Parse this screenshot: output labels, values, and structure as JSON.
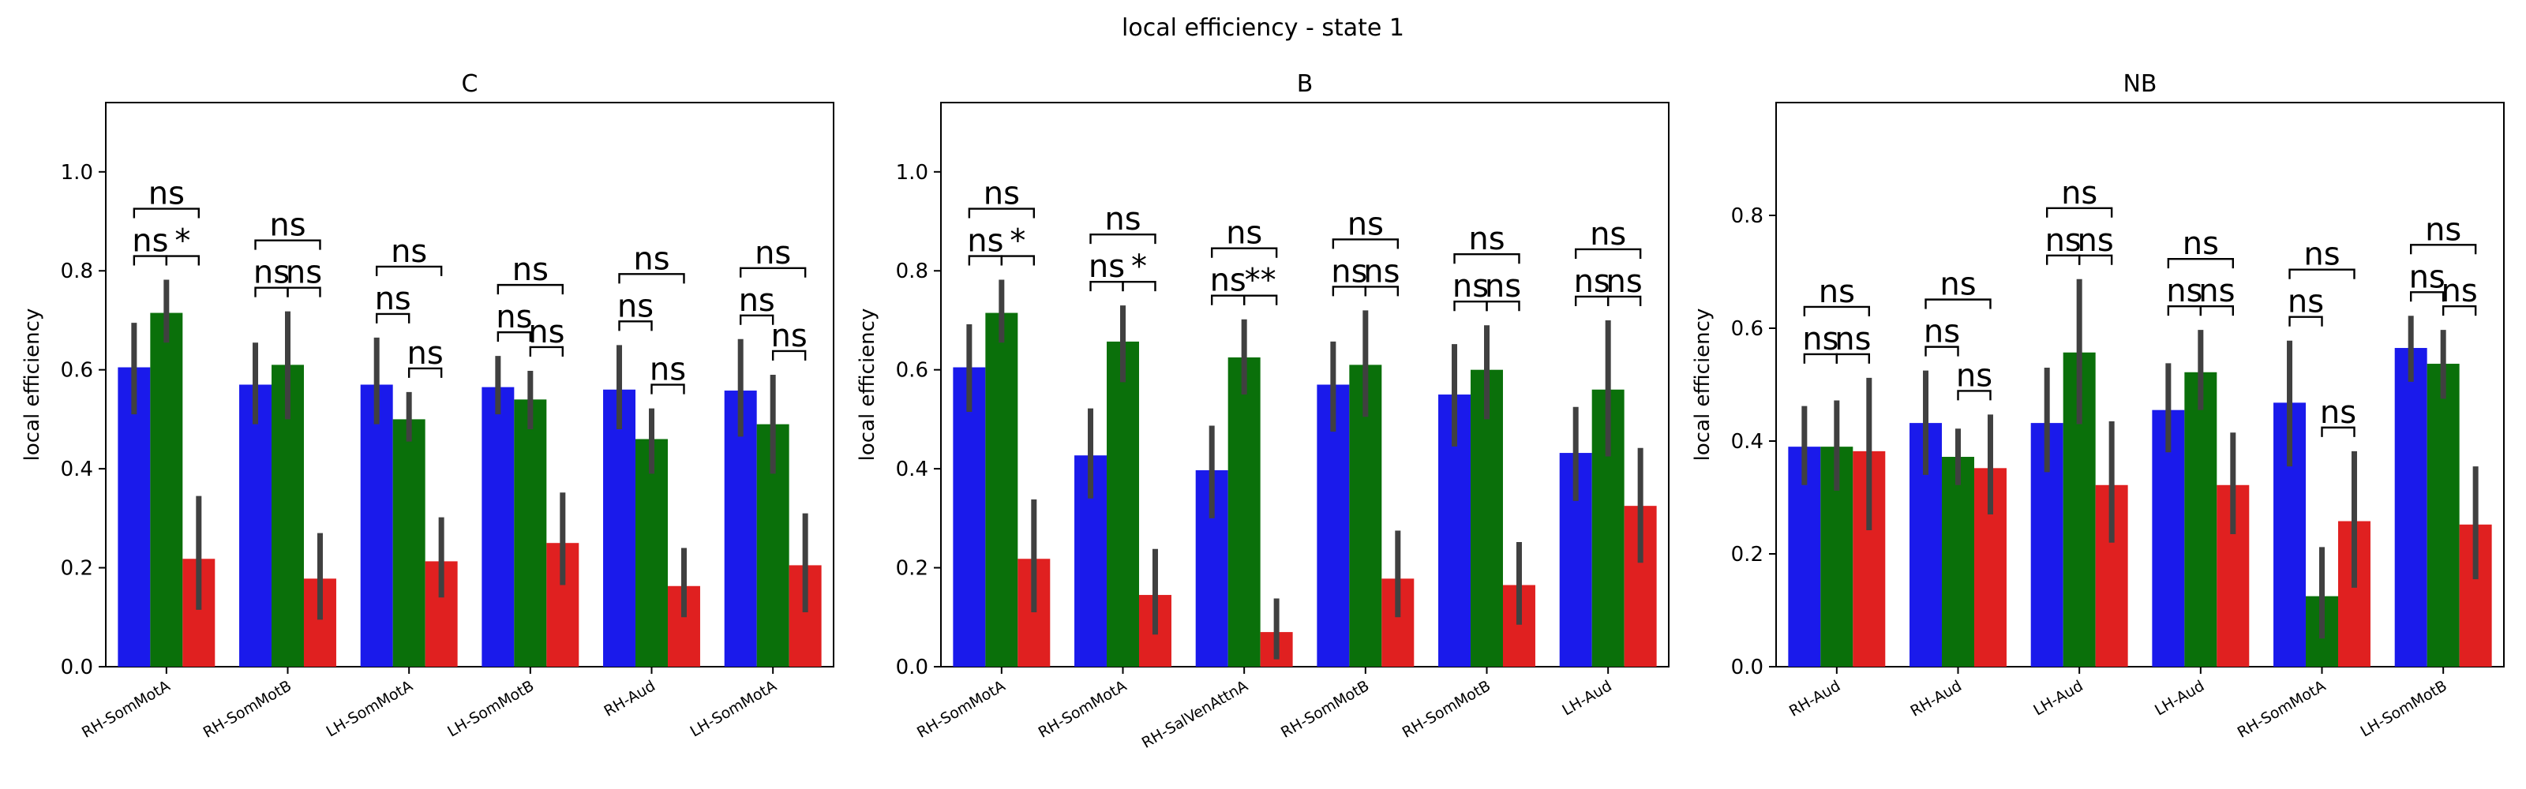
{
  "figure": {
    "suptitle": "local efficiency - state 1"
  },
  "colors": {
    "series": [
      "#1a1aeb",
      "#0a700a",
      "#e02020"
    ],
    "errorbar": "#404040"
  },
  "chart_data": [
    {
      "type": "bar",
      "title": "C",
      "ylabel": "local efficiency",
      "xlabel": "",
      "ylim": [
        0,
        1.14
      ],
      "yticks": [
        "0.0",
        "0.2",
        "0.4",
        "0.6",
        "0.8",
        "1.0"
      ],
      "categories": [
        "RH-SomMotA",
        "RH-SomMotB",
        "LH-SomMotA",
        "LH-SomMotB",
        "RH-Aud",
        "LH-SomMotA"
      ],
      "series": [
        {
          "values": [
            0.605,
            0.57,
            0.57,
            0.565,
            0.56,
            0.558
          ],
          "err_low": [
            0.51,
            0.49,
            0.49,
            0.51,
            0.48,
            0.465
          ],
          "err_high": [
            0.695,
            0.655,
            0.665,
            0.628,
            0.65,
            0.662
          ]
        },
        {
          "values": [
            0.715,
            0.61,
            0.5,
            0.54,
            0.46,
            0.49
          ],
          "err_low": [
            0.655,
            0.5,
            0.455,
            0.48,
            0.39,
            0.39
          ],
          "err_high": [
            0.782,
            0.718,
            0.555,
            0.598,
            0.522,
            0.59
          ]
        },
        {
          "values": [
            0.218,
            0.178,
            0.213,
            0.25,
            0.163,
            0.205
          ],
          "err_low": [
            0.115,
            0.095,
            0.14,
            0.165,
            0.1,
            0.11
          ],
          "err_high": [
            0.345,
            0.27,
            0.302,
            0.352,
            0.24,
            0.31
          ]
        }
      ],
      "annotations": [
        [
          "ns",
          "ns",
          "*"
        ],
        [
          "ns",
          "ns",
          "ns"
        ],
        [
          "ns",
          "ns",
          "ns"
        ],
        [
          "ns",
          "ns",
          "ns"
        ],
        [
          "ns",
          "ns",
          "ns"
        ],
        [
          "ns",
          "ns",
          "ns"
        ]
      ]
    },
    {
      "type": "bar",
      "title": "B",
      "ylabel": "local efficiency",
      "xlabel": "",
      "ylim": [
        0,
        1.14
      ],
      "yticks": [
        "0.0",
        "0.2",
        "0.4",
        "0.6",
        "0.8",
        "1.0"
      ],
      "categories": [
        "RH-SomMotA",
        "RH-SomMotA",
        "RH-SalVenAttnA",
        "RH-SomMotB",
        "RH-SomMotB",
        "LH-Aud"
      ],
      "series": [
        {
          "values": [
            0.605,
            0.427,
            0.397,
            0.57,
            0.55,
            0.432
          ],
          "err_low": [
            0.515,
            0.34,
            0.3,
            0.475,
            0.445,
            0.335
          ],
          "err_high": [
            0.692,
            0.522,
            0.487,
            0.657,
            0.652,
            0.525
          ]
        },
        {
          "values": [
            0.715,
            0.657,
            0.625,
            0.61,
            0.6,
            0.56
          ],
          "err_low": [
            0.655,
            0.575,
            0.55,
            0.505,
            0.5,
            0.425
          ],
          "err_high": [
            0.782,
            0.73,
            0.702,
            0.72,
            0.69,
            0.7
          ]
        },
        {
          "values": [
            0.218,
            0.145,
            0.07,
            0.178,
            0.165,
            0.325
          ],
          "err_low": [
            0.11,
            0.065,
            0.015,
            0.1,
            0.085,
            0.21
          ],
          "err_high": [
            0.338,
            0.238,
            0.138,
            0.275,
            0.252,
            0.442
          ]
        }
      ],
      "annotations": [
        [
          "ns",
          "ns",
          "*"
        ],
        [
          "ns",
          "ns",
          "*"
        ],
        [
          "ns",
          "ns",
          "**"
        ],
        [
          "ns",
          "ns",
          "ns"
        ],
        [
          "ns",
          "ns",
          "ns"
        ],
        [
          "ns",
          "ns",
          "ns"
        ]
      ]
    },
    {
      "type": "bar",
      "title": "NB",
      "ylabel": "local efficiency",
      "xlabel": "",
      "ylim": [
        0,
        1.0
      ],
      "yticks": [
        "0.0",
        "0.2",
        "0.4",
        "0.6",
        "0.8"
      ],
      "categories": [
        "RH-Aud",
        "RH-Aud",
        "LH-Aud",
        "LH-Aud",
        "RH-SomMotA",
        "LH-SomMotB"
      ],
      "series": [
        {
          "values": [
            0.39,
            0.432,
            0.432,
            0.455,
            0.468,
            0.565
          ],
          "err_low": [
            0.322,
            0.34,
            0.345,
            0.38,
            0.355,
            0.505
          ],
          "err_high": [
            0.462,
            0.525,
            0.53,
            0.538,
            0.578,
            0.622
          ]
        },
        {
          "values": [
            0.39,
            0.372,
            0.557,
            0.522,
            0.125,
            0.537
          ],
          "err_low": [
            0.312,
            0.322,
            0.43,
            0.455,
            0.05,
            0.475
          ],
          "err_high": [
            0.472,
            0.422,
            0.687,
            0.597,
            0.212,
            0.597
          ]
        },
        {
          "values": [
            0.382,
            0.352,
            0.322,
            0.322,
            0.258,
            0.252
          ],
          "err_low": [
            0.242,
            0.27,
            0.22,
            0.235,
            0.14,
            0.155
          ],
          "err_high": [
            0.512,
            0.447,
            0.435,
            0.415,
            0.382,
            0.355
          ]
        }
      ],
      "annotations": [
        [
          "ns",
          "ns",
          "ns"
        ],
        [
          "ns",
          "ns",
          "ns"
        ],
        [
          "ns",
          "ns",
          "ns"
        ],
        [
          "ns",
          "ns",
          "ns"
        ],
        [
          "ns",
          "ns",
          "ns"
        ],
        [
          "ns",
          "ns",
          "ns"
        ]
      ]
    }
  ]
}
